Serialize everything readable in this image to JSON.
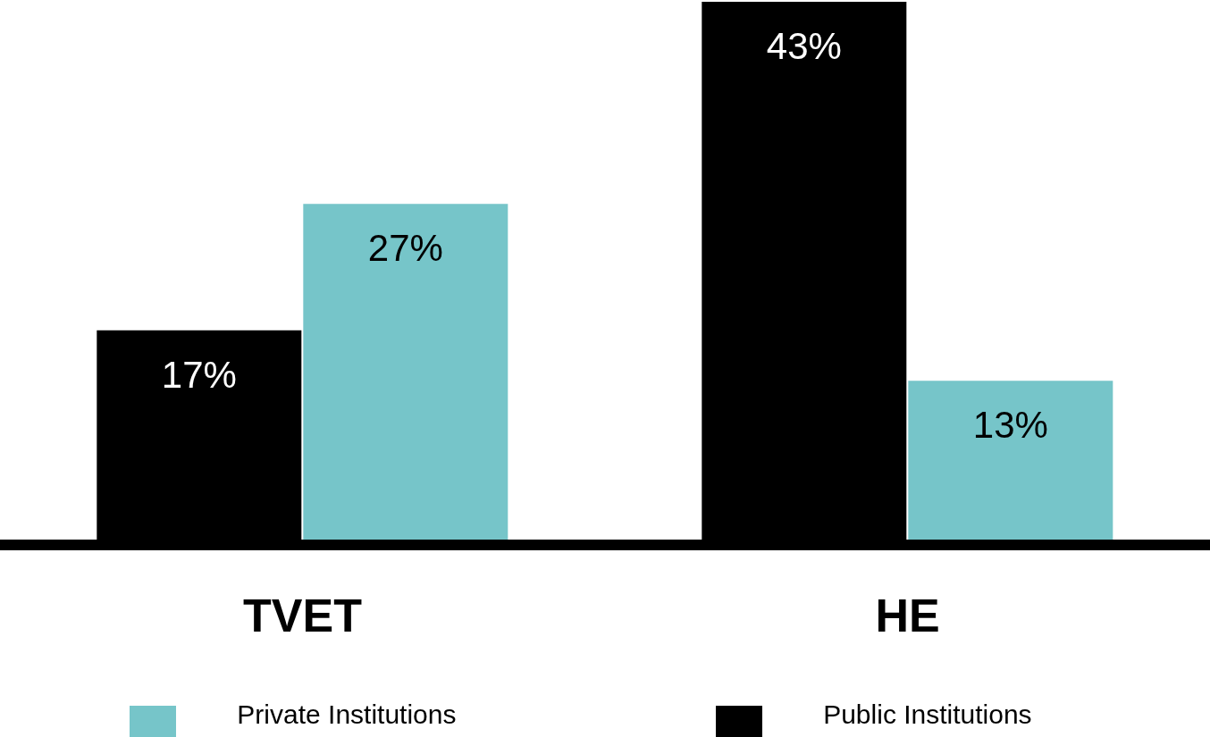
{
  "chart_data": {
    "type": "bar",
    "categories": [
      "TVET",
      "HE"
    ],
    "series": [
      {
        "name": "Public Institutions",
        "color": "#000000",
        "values": [
          17,
          43
        ],
        "value_labels": [
          "17%",
          "43%"
        ]
      },
      {
        "name": "Private Institutions",
        "color": "#76c5c9",
        "values": [
          27,
          13
        ],
        "value_labels": [
          "27%",
          "13%"
        ]
      }
    ],
    "legend": "bottom",
    "grid": false
  }
}
